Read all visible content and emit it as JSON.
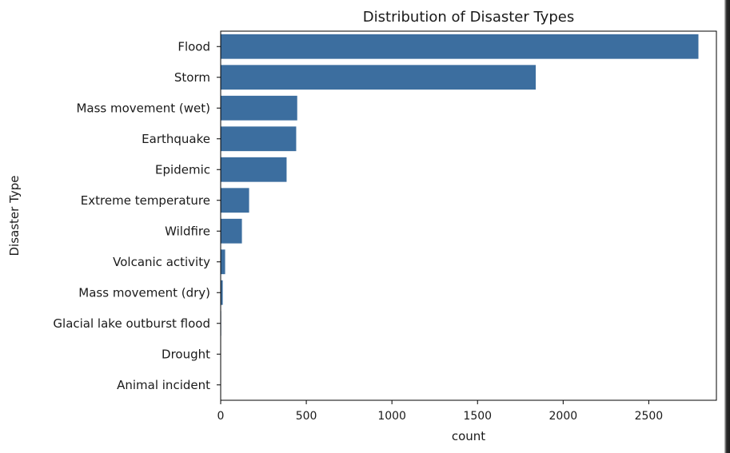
{
  "chart_data": {
    "type": "bar",
    "orientation": "horizontal",
    "title": "Distribution of Disaster Types",
    "xlabel": "count",
    "ylabel": "Disaster Type",
    "categories": [
      "Flood",
      "Storm",
      "Mass movement (wet)",
      "Earthquake",
      "Epidemic",
      "Extreme temperature",
      "Wildfire",
      "Volcanic activity",
      "Mass movement (dry)",
      "Glacial lake outburst flood",
      "Drought",
      "Animal incident"
    ],
    "values": [
      2790,
      1840,
      447,
      441,
      385,
      166,
      124,
      26,
      12,
      3,
      2,
      1
    ],
    "xlim": [
      0,
      2895
    ],
    "xticks": [
      0,
      500,
      1000,
      1500,
      2000,
      2500
    ],
    "xtick_labels": [
      "0",
      "500",
      "1000",
      "1500",
      "2000",
      "2500"
    ],
    "grid": false,
    "bar_color": "#3c6e9f"
  }
}
